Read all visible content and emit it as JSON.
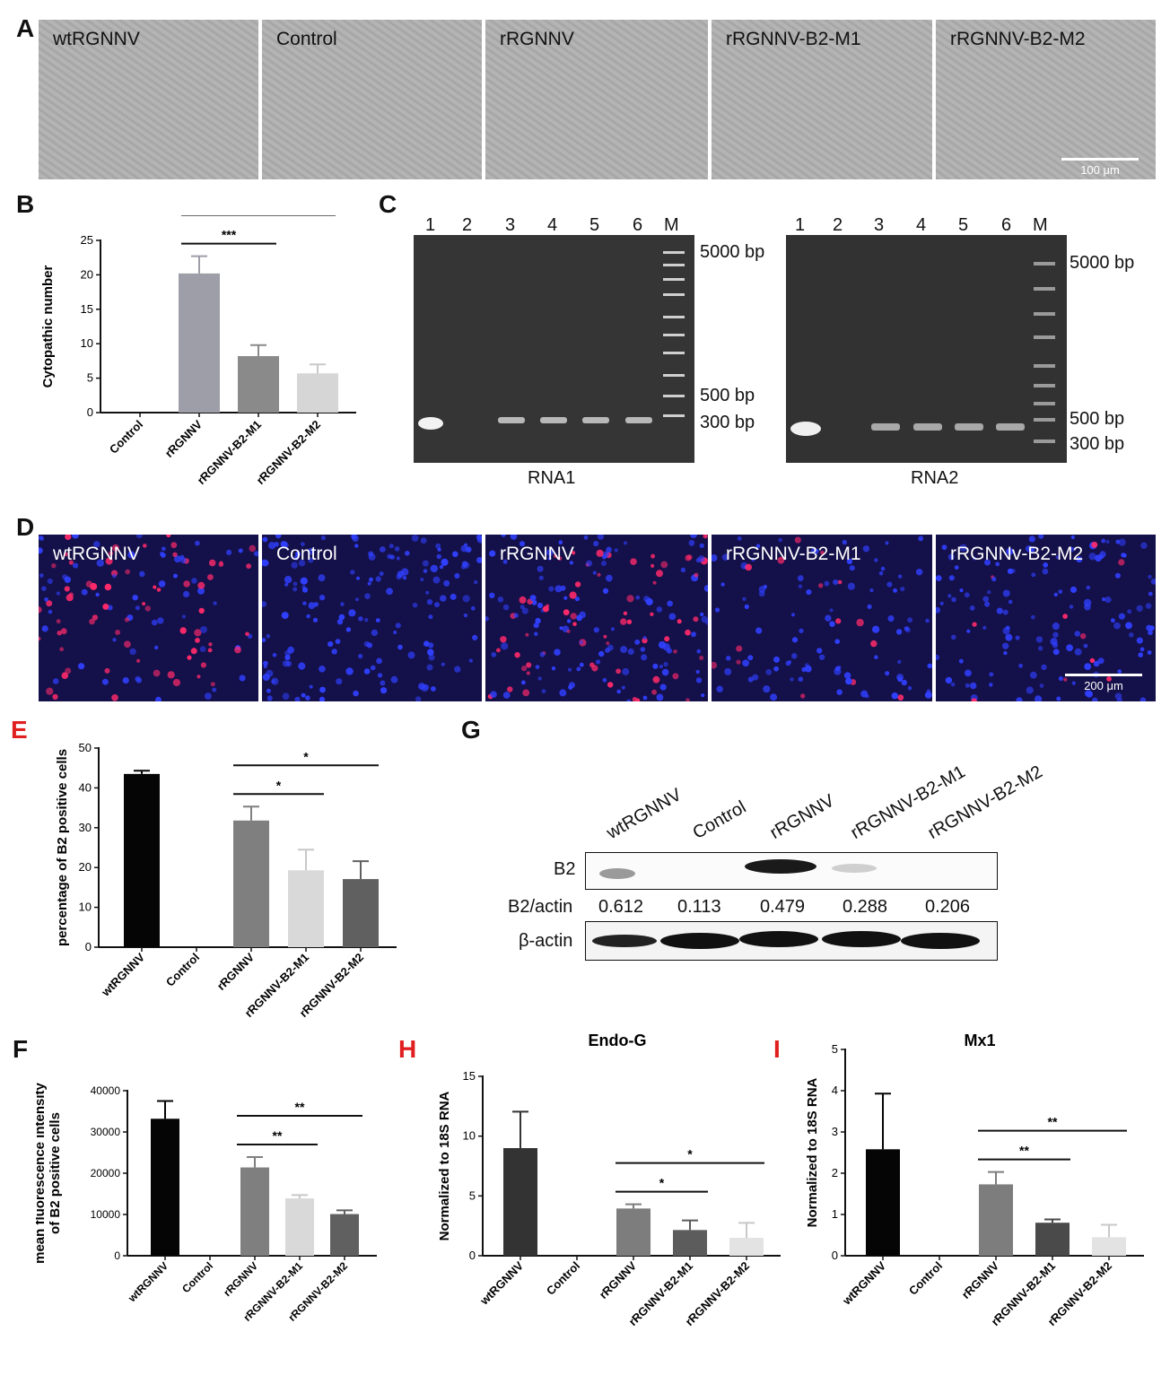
{
  "panels": {
    "A": "A",
    "B": "B",
    "C": "C",
    "D": "D",
    "E": "E",
    "F": "F",
    "G": "G",
    "H": "H",
    "I": "I"
  },
  "colors": {
    "letter_red": "#e02020",
    "bf_bg": "#acacac",
    "fl_bg": "#14104a",
    "fl_dot_blue": "#3040ff",
    "fl_dot_red": "#ff2a6a"
  },
  "panelA": {
    "labels": [
      "wtRGNNV",
      "Control",
      "rRGNNV",
      "rRGNNV-B2-M1",
      "rRGNNV-B2-M2"
    ],
    "scale": "100 μm"
  },
  "panelD": {
    "labels": [
      "wtRGNNV",
      "Control",
      "rRGNNV",
      "rRGNNV-B2-M1",
      "rRGNNv-B2-M2"
    ],
    "scale": "200 μm"
  },
  "panelC": {
    "lanes": [
      "1",
      "2",
      "3",
      "4",
      "5",
      "6",
      "M"
    ],
    "left": {
      "caption": "RNA1",
      "markers": [
        "5000 bp",
        "500 bp",
        "300 bp"
      ]
    },
    "right": {
      "caption": "RNA2",
      "markers": [
        "5000 bp",
        "500 bp",
        "300 bp"
      ]
    }
  },
  "panelG": {
    "lanes": [
      "wtRGNNV",
      "Control",
      "rRGNNV",
      "rRGNNV-B2-M1",
      "rRGNNV-B2-M2"
    ],
    "row1": "B2",
    "ratio_label": "B2/actin",
    "ratios": [
      "0.612",
      "0.113",
      "0.479",
      "0.288",
      "0.206"
    ],
    "row2": "β-actin"
  },
  "chart_data": [
    {
      "id": "B",
      "type": "bar",
      "title": "",
      "ylabel": "Cytopathic number",
      "ylim": [
        0,
        25
      ],
      "yticks": [
        0,
        5,
        10,
        15,
        20,
        25
      ],
      "categories": [
        "Control",
        "rRGNNV",
        "rRGNNV-B2-M1",
        "rRGNNV-B2-M2"
      ],
      "values": [
        0,
        20.2,
        8.2,
        5.7
      ],
      "errors": [
        0,
        2.5,
        1.6,
        1.3
      ],
      "colors": [
        "#9e9ea8",
        "#9e9ea8",
        "#8a8a8a",
        "#d6d6d6"
      ],
      "significance": [
        {
          "from": 1,
          "to": 2,
          "label": "***"
        },
        {
          "from": 1,
          "to": 3,
          "label": "****"
        }
      ]
    },
    {
      "id": "E",
      "type": "bar",
      "title": "",
      "ylabel": "percentage of B2 positive cells",
      "ylim": [
        0,
        50
      ],
      "yticks": [
        0,
        10,
        20,
        30,
        40,
        50
      ],
      "categories": [
        "wtRGNNV",
        "Control",
        "rRGNNV",
        "rRGNNV-B2-M1",
        "rRGNNV-B2-M2"
      ],
      "values": [
        43.5,
        0,
        31.8,
        19.3,
        17.1
      ],
      "errors": [
        0.8,
        0,
        3.5,
        5.2,
        4.5
      ],
      "colors": [
        "#050505",
        "#050505",
        "#7f7f7f",
        "#d9d9d9",
        "#606060"
      ],
      "significance": [
        {
          "from": 2,
          "to": 3,
          "label": "*"
        },
        {
          "from": 2,
          "to": 4,
          "label": "*"
        }
      ]
    },
    {
      "id": "F",
      "type": "bar",
      "title": "",
      "ylabel": [
        "mean fluorescence intensity",
        "of B2 positive cells"
      ],
      "ylim": [
        0,
        40000
      ],
      "yticks": [
        0,
        10000,
        20000,
        30000,
        40000
      ],
      "categories": [
        "wtRGNNV",
        "Control",
        "rRGNNV",
        "rRGNNV-B2-M1",
        "rRGNNV-B2-M2"
      ],
      "values": [
        33200,
        0,
        21400,
        13900,
        10100
      ],
      "errors": [
        4300,
        0,
        2500,
        800,
        900
      ],
      "colors": [
        "#050505",
        "#050505",
        "#7f7f7f",
        "#d9d9d9",
        "#606060"
      ],
      "significance": [
        {
          "from": 2,
          "to": 3,
          "label": "**"
        },
        {
          "from": 2,
          "to": 4,
          "label": "**"
        }
      ]
    },
    {
      "id": "H",
      "type": "bar",
      "title": "Endo-G",
      "ylabel": "Normalized to 18S RNA",
      "ylim": [
        0,
        15
      ],
      "yticks": [
        0,
        5,
        10,
        15
      ],
      "categories": [
        "wtRGNNV",
        "Control",
        "rRGNNV",
        "rRGNNV-B2-M1",
        "rRGNNV-B2-M2"
      ],
      "values": [
        9.0,
        0,
        3.95,
        2.15,
        1.5
      ],
      "errors": [
        3.05,
        0,
        0.35,
        0.8,
        1.25
      ],
      "colors": [
        "#333333",
        "#333333",
        "#7d7d7d",
        "#5c5c5c",
        "#e3e3e3"
      ],
      "significance": [
        {
          "from": 2,
          "to": 3,
          "label": "*"
        },
        {
          "from": 2,
          "to": 4,
          "label": "*"
        }
      ]
    },
    {
      "id": "I",
      "type": "bar",
      "title": "Mx1",
      "ylabel": "Normalized to 18S RNA",
      "ylim": [
        0,
        5
      ],
      "yticks": [
        0,
        1,
        2,
        3,
        4,
        5
      ],
      "categories": [
        "wtRGNNV",
        "Control",
        "rRGNNV",
        "rRGNNV-B2-M1",
        "rRGNNV-B2-M2"
      ],
      "values": [
        2.58,
        0,
        1.73,
        0.8,
        0.45
      ],
      "errors": [
        1.35,
        0,
        0.3,
        0.08,
        0.3
      ],
      "colors": [
        "#050505",
        "#050505",
        "#7d7d7d",
        "#4a4a4a",
        "#e3e3e3"
      ],
      "significance": [
        {
          "from": 2,
          "to": 3,
          "label": "**"
        },
        {
          "from": 2,
          "to": 4,
          "label": "**"
        }
      ]
    }
  ]
}
